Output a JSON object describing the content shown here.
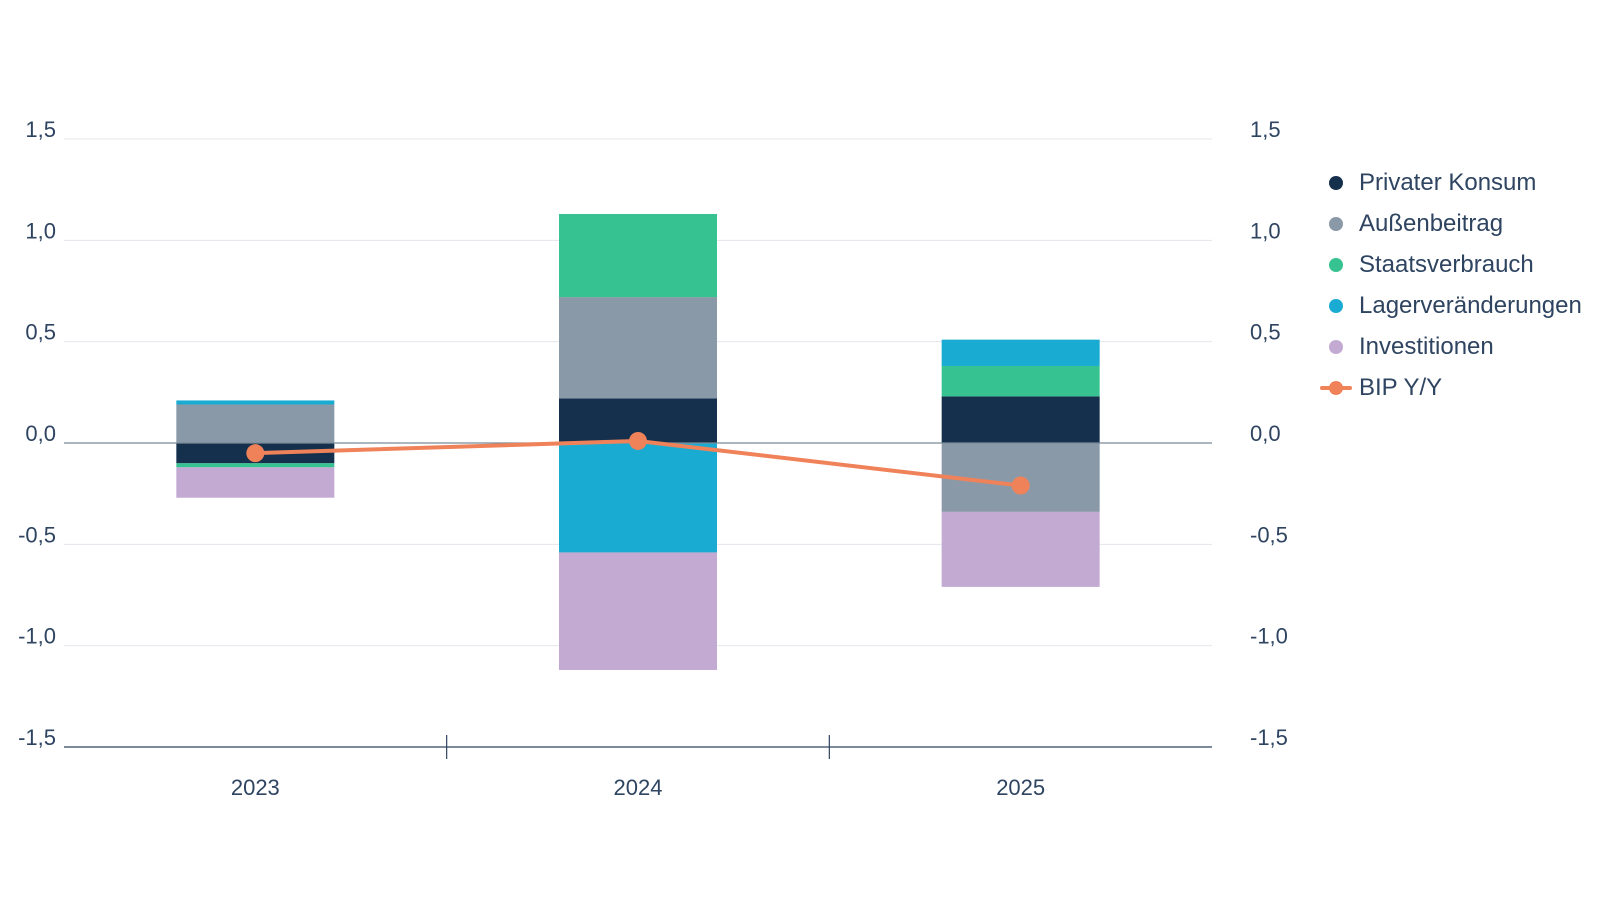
{
  "chart_data": {
    "type": "bar",
    "stacked": true,
    "categories": [
      "2023",
      "2024",
      "2025"
    ],
    "ylim": [
      -1.5,
      1.5
    ],
    "yticks": [
      "1,5",
      "1,0",
      "0,5",
      "0,0",
      "-0,5",
      "-1,0",
      "-1,5"
    ],
    "ytick_values": [
      1.5,
      1.0,
      0.5,
      0.0,
      -0.5,
      -1.0,
      -1.5
    ],
    "grid": true,
    "dual_y_axis": true,
    "legend_position": "right",
    "series": [
      {
        "name": "Privater Konsum",
        "color": "#15304d",
        "values": [
          -0.1,
          0.22,
          0.23
        ]
      },
      {
        "name": "Außenbeitrag",
        "color": "#8a99a8",
        "values": [
          0.19,
          0.5,
          -0.34
        ]
      },
      {
        "name": "Staatsverbrauch",
        "color": "#36c291",
        "values": [
          -0.02,
          0.41,
          0.15
        ]
      },
      {
        "name": "Lagerveränderungen",
        "color": "#1aabd3",
        "values": [
          0.02,
          -0.54,
          0.13
        ]
      },
      {
        "name": "Investitionen",
        "color": "#c3aad2",
        "values": [
          -0.15,
          -0.58,
          -0.37
        ]
      }
    ],
    "line_series": {
      "name": "BIP Y/Y",
      "color": "#f0825a",
      "values": [
        -0.05,
        0.01,
        -0.21
      ]
    }
  }
}
